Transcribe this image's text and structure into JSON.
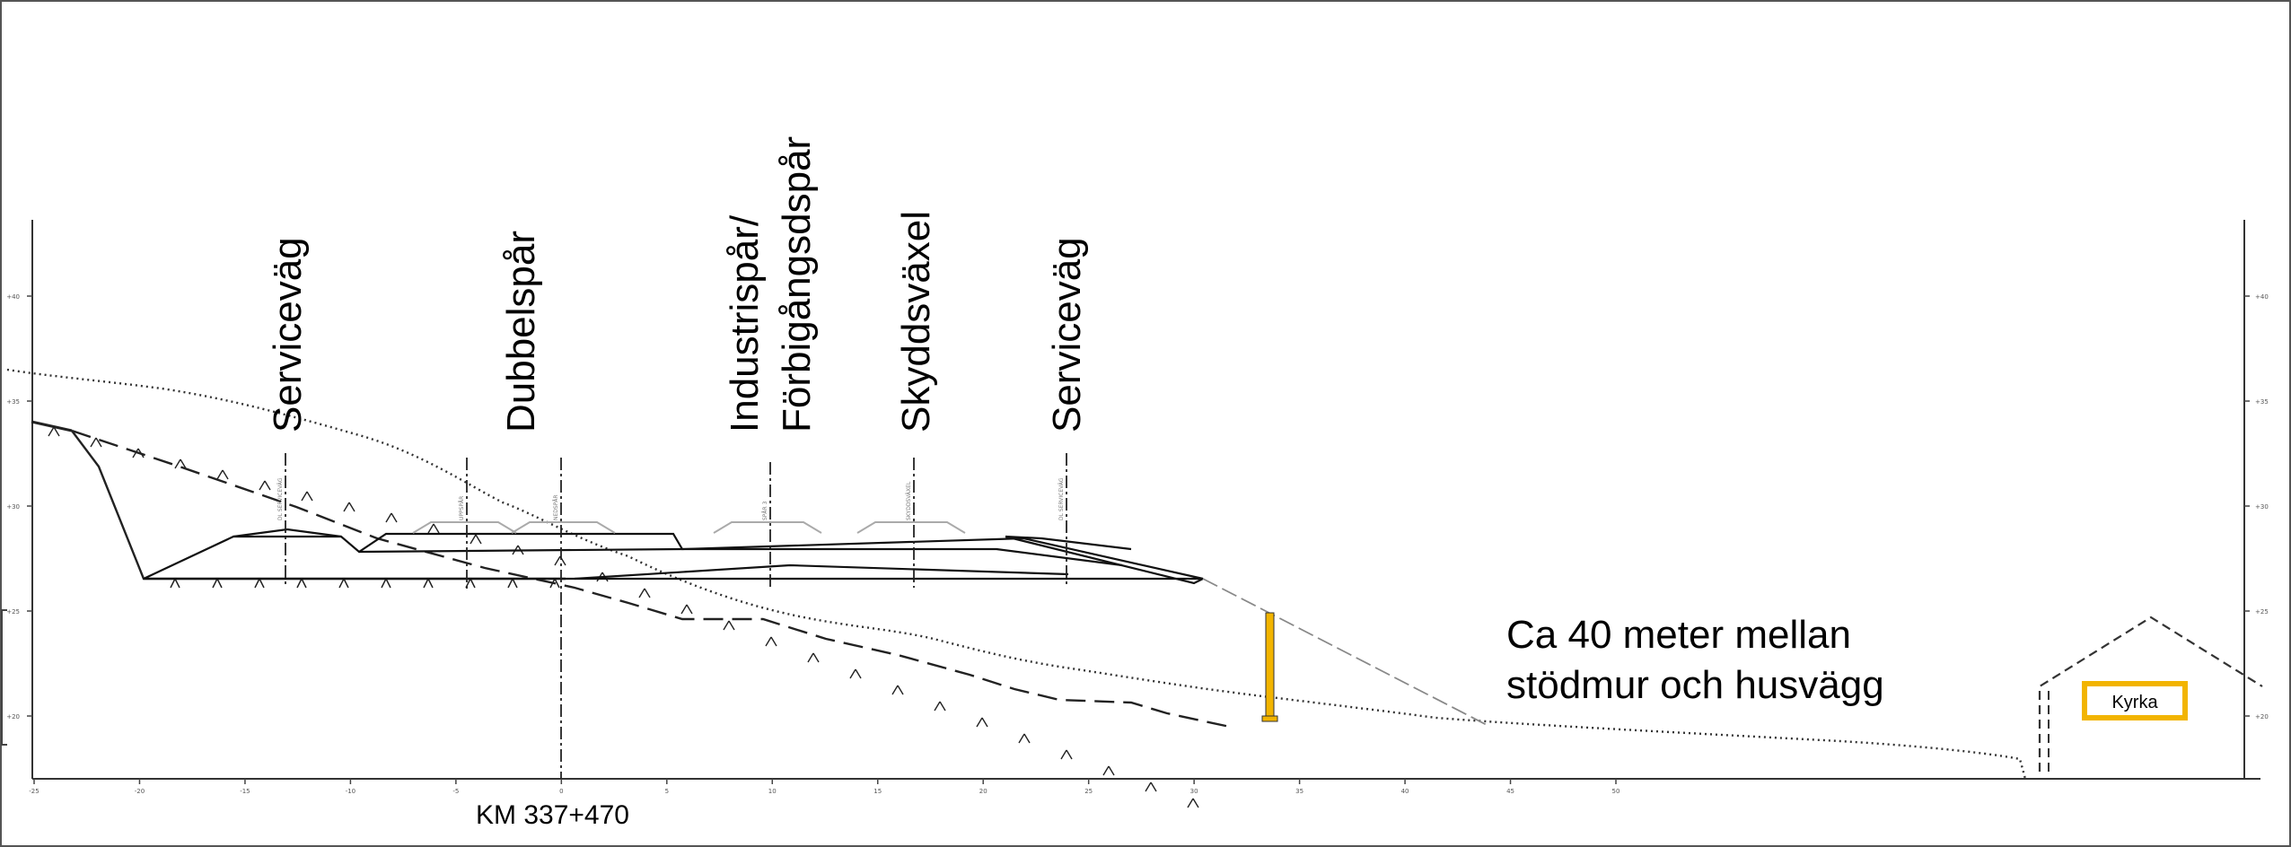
{
  "labels": {
    "serviceway_left": "Serviceväg",
    "double_track": "Dubbelspår",
    "industry_track_line1": "Industrispår/",
    "industry_track_line2": "Förbigångsdspår",
    "protection_switch": "Skyddsväxel",
    "serviceway_right": "Serviceväg"
  },
  "distance_note": {
    "line1": "Ca 40 meter mellan",
    "line2": "stödmur och husvägg"
  },
  "station_label": "KM 337+470",
  "building_label": "Kyrka",
  "x_axis_ticks": [
    "-25",
    "-20",
    "-15",
    "-10",
    "-5",
    "0",
    "5",
    "10",
    "15",
    "20",
    "25",
    "30",
    "35",
    "40",
    "45",
    "50"
  ],
  "y_axis_ticks": [
    "+40",
    "+35",
    "+30",
    "+25",
    "+20"
  ],
  "colors": {
    "retaining_wall": "#f2b400",
    "building_frame": "#f2b400",
    "lines": "#222222",
    "terrain_dotted": "#333333"
  }
}
